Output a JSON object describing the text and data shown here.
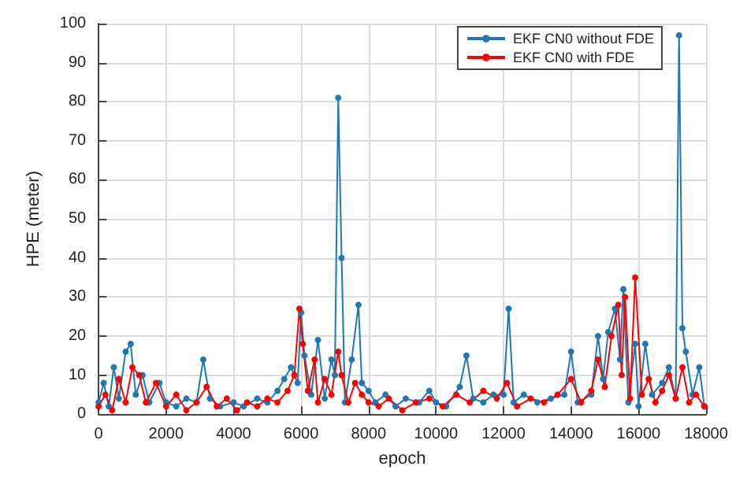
{
  "chart_data": {
    "type": "line",
    "xlabel": "epoch",
    "ylabel": "HPE (meter)",
    "xlim": [
      0,
      18000
    ],
    "xticks": [
      0,
      2000,
      4000,
      6000,
      8000,
      10000,
      12000,
      14000,
      16000,
      18000
    ],
    "ylim": [
      0,
      100
    ],
    "yticks": [
      0,
      10,
      20,
      30,
      40,
      50,
      60,
      70,
      80,
      90,
      100
    ],
    "grid": true,
    "legend": "top right",
    "marker": "circle",
    "line_style": "solid",
    "series": [
      {
        "name": "EKF CN0 without FDE",
        "color": "#1f77b4",
        "x": [
          0,
          150,
          300,
          450,
          600,
          800,
          950,
          1100,
          1300,
          1500,
          1800,
          2000,
          2300,
          2600,
          2900,
          3100,
          3300,
          3600,
          4000,
          4300,
          4700,
          5000,
          5300,
          5500,
          5700,
          5900,
          6000,
          6100,
          6300,
          6500,
          6700,
          6900,
          7000,
          7100,
          7200,
          7300,
          7500,
          7700,
          7800,
          8000,
          8200,
          8500,
          8800,
          9100,
          9500,
          9800,
          10000,
          10300,
          10700,
          10900,
          11100,
          11400,
          11700,
          12000,
          12150,
          12300,
          12600,
          13000,
          13400,
          13800,
          14000,
          14200,
          14600,
          14800,
          14950,
          15100,
          15300,
          15450,
          15550,
          15700,
          15900,
          16000,
          16200,
          16400,
          16700,
          16900,
          17100,
          17200,
          17300,
          17400,
          17600,
          17800,
          17950
        ],
        "values": [
          3,
          8,
          2,
          12,
          4,
          16,
          18,
          5,
          10,
          3,
          8,
          3,
          2,
          4,
          3,
          14,
          4,
          2,
          3,
          2,
          4,
          3,
          6,
          9,
          12,
          8,
          26,
          15,
          5,
          19,
          4,
          14,
          10,
          81,
          40,
          3,
          14,
          28,
          8,
          6,
          3,
          5,
          2,
          4,
          3,
          6,
          3,
          2,
          7,
          15,
          4,
          3,
          5,
          5,
          27,
          3,
          5,
          3,
          4,
          5,
          16,
          3,
          5,
          20,
          9,
          21,
          27,
          14,
          32,
          3,
          18,
          2,
          18,
          5,
          8,
          12,
          4,
          97,
          22,
          16,
          5,
          12,
          2
        ]
      },
      {
        "name": "EKF CN0 with FDE",
        "color": "#ff0000",
        "x": [
          0,
          200,
          400,
          600,
          800,
          1000,
          1200,
          1400,
          1700,
          2000,
          2300,
          2600,
          2900,
          3200,
          3500,
          3800,
          4100,
          4400,
          4700,
          5000,
          5300,
          5600,
          5800,
          5950,
          6050,
          6200,
          6400,
          6500,
          6700,
          6900,
          7100,
          7200,
          7400,
          7600,
          7800,
          8000,
          8300,
          8600,
          9000,
          9400,
          9800,
          10200,
          10600,
          11000,
          11400,
          11800,
          12100,
          12400,
          12800,
          13200,
          13600,
          14000,
          14300,
          14600,
          14800,
          15000,
          15200,
          15400,
          15500,
          15600,
          15750,
          15900,
          16100,
          16300,
          16500,
          16700,
          16900,
          17100,
          17300,
          17500,
          17700,
          17950
        ],
        "values": [
          2,
          5,
          1,
          9,
          3,
          12,
          10,
          3,
          8,
          2,
          5,
          1,
          3,
          7,
          2,
          4,
          1,
          3,
          2,
          4,
          3,
          6,
          10,
          27,
          18,
          6,
          14,
          3,
          9,
          5,
          16,
          10,
          3,
          8,
          5,
          3,
          2,
          4,
          1,
          3,
          4,
          2,
          5,
          3,
          6,
          4,
          8,
          2,
          4,
          3,
          5,
          9,
          3,
          6,
          14,
          7,
          20,
          28,
          10,
          30,
          4,
          35,
          5,
          9,
          3,
          6,
          10,
          4,
          12,
          3,
          5,
          2
        ]
      }
    ]
  }
}
